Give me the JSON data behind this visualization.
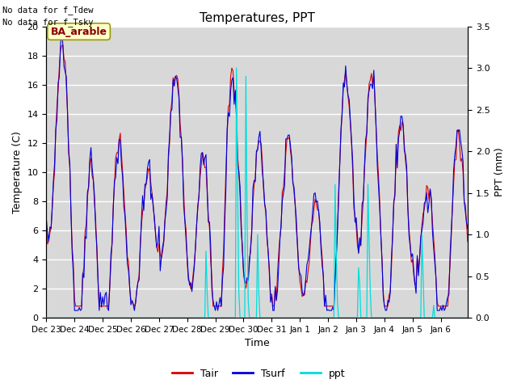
{
  "title": "Temperatures, PPT",
  "xlabel": "Time",
  "ylabel_left": "Temperature (C)",
  "ylabel_right": "PPT (mm)",
  "note1": "No data for f_Tdew",
  "note2": "No data for f_Tsky",
  "label_box": "BA_arable",
  "legend_tair": "Tair",
  "legend_tsurf": "Tsurf",
  "legend_ppt": "ppt",
  "ylim_left": [
    0,
    20
  ],
  "ylim_right": [
    0,
    3.5
  ],
  "bg_color": "#d8d8d8",
  "tair_color": "#dd0000",
  "tsurf_color": "#0000dd",
  "ppt_color": "#00dddd",
  "grid_color": "#ffffff",
  "label_box_bg": "#ffffcc",
  "label_box_edge": "#999900",
  "label_box_text": "#880000"
}
